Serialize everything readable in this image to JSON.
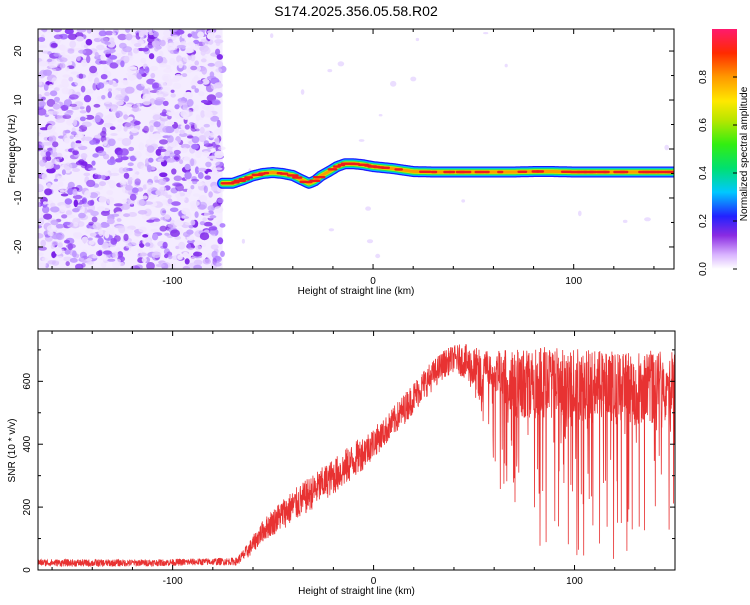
{
  "title": "S174.2025.356.05.58.R02",
  "chart_data": [
    {
      "type": "heatmap",
      "name": "spectrogram",
      "xlabel": "Height of straight line (km)",
      "ylabel": "Frequency (Hz)",
      "xlim": [
        -167,
        150
      ],
      "ylim": [
        -24.5,
        24.5
      ],
      "xticks": [
        -100,
        0,
        100
      ],
      "xtick_labels": [
        "-100",
        "0",
        "100"
      ],
      "yticks": [
        -20,
        -10,
        0,
        10,
        20
      ],
      "ytick_labels": [
        "-20",
        "-10",
        "0",
        "10",
        "20"
      ],
      "noise_region_x": [
        -167,
        -75
      ],
      "signal_track": {
        "x": [
          -75,
          -70,
          -65,
          -60,
          -55,
          -50,
          -45,
          -40,
          -35,
          -32,
          -29,
          -26,
          -22,
          -18,
          -14,
          -10,
          -5,
          0,
          5,
          10,
          15,
          20,
          30,
          40,
          50,
          60,
          70,
          80,
          90,
          100,
          110,
          120,
          130,
          140,
          150
        ],
        "freq": [
          -7.0,
          -7.0,
          -6.3,
          -5.5,
          -5.0,
          -4.8,
          -5.0,
          -5.4,
          -6.4,
          -7.0,
          -6.5,
          -5.5,
          -4.6,
          -3.6,
          -3.0,
          -3.0,
          -3.2,
          -3.6,
          -3.8,
          -4.0,
          -4.3,
          -4.6,
          -4.7,
          -4.7,
          -4.7,
          -4.7,
          -4.7,
          -4.6,
          -4.6,
          -4.7,
          -4.7,
          -4.7,
          -4.7,
          -4.7,
          -4.7
        ]
      },
      "colorbar": {
        "label": "Normalized spectral amplitude",
        "range": [
          0,
          1
        ],
        "ticks": [
          0.0,
          0.2,
          0.4,
          0.6,
          0.8
        ],
        "tick_labels": [
          "0.0",
          "0.2",
          "0.4",
          "0.6",
          "0.8"
        ]
      }
    },
    {
      "type": "line",
      "name": "snr",
      "xlabel": "Height of straight line (km)",
      "ylabel": "SNR (10 * v/v)",
      "xlim": [
        -167,
        150
      ],
      "ylim": [
        0,
        760
      ],
      "xticks": [
        -100,
        0,
        100
      ],
      "xtick_labels": [
        "-100",
        "0",
        "100"
      ],
      "yticks": [
        0,
        200,
        400,
        600
      ],
      "ytick_labels": [
        "0",
        "200",
        "400",
        "600"
      ],
      "series": [
        {
          "name": "SNR",
          "color": "#e83232",
          "x": [
            -167,
            -140,
            -110,
            -80,
            -68,
            -62,
            -55,
            -45,
            -35,
            -25,
            -15,
            -5,
            5,
            15,
            25,
            35,
            40,
            45,
            50,
            55,
            60,
            65,
            70,
            80,
            90,
            100,
            110,
            120,
            130,
            140,
            150
          ],
          "envelope_low": [
            12,
            10,
            12,
            15,
            15,
            40,
            90,
            130,
            170,
            220,
            260,
            320,
            390,
            460,
            540,
            610,
            630,
            610,
            560,
            450,
            320,
            200,
            80,
            60,
            40,
            30,
            40,
            20,
            30,
            40,
            20
          ],
          "envelope_high": [
            35,
            34,
            34,
            38,
            40,
            90,
            160,
            230,
            280,
            330,
            380,
            430,
            480,
            560,
            640,
            700,
            715,
            720,
            710,
            700,
            700,
            700,
            700,
            700,
            720,
            705,
            700,
            700,
            690,
            700,
            700
          ]
        }
      ]
    }
  ]
}
